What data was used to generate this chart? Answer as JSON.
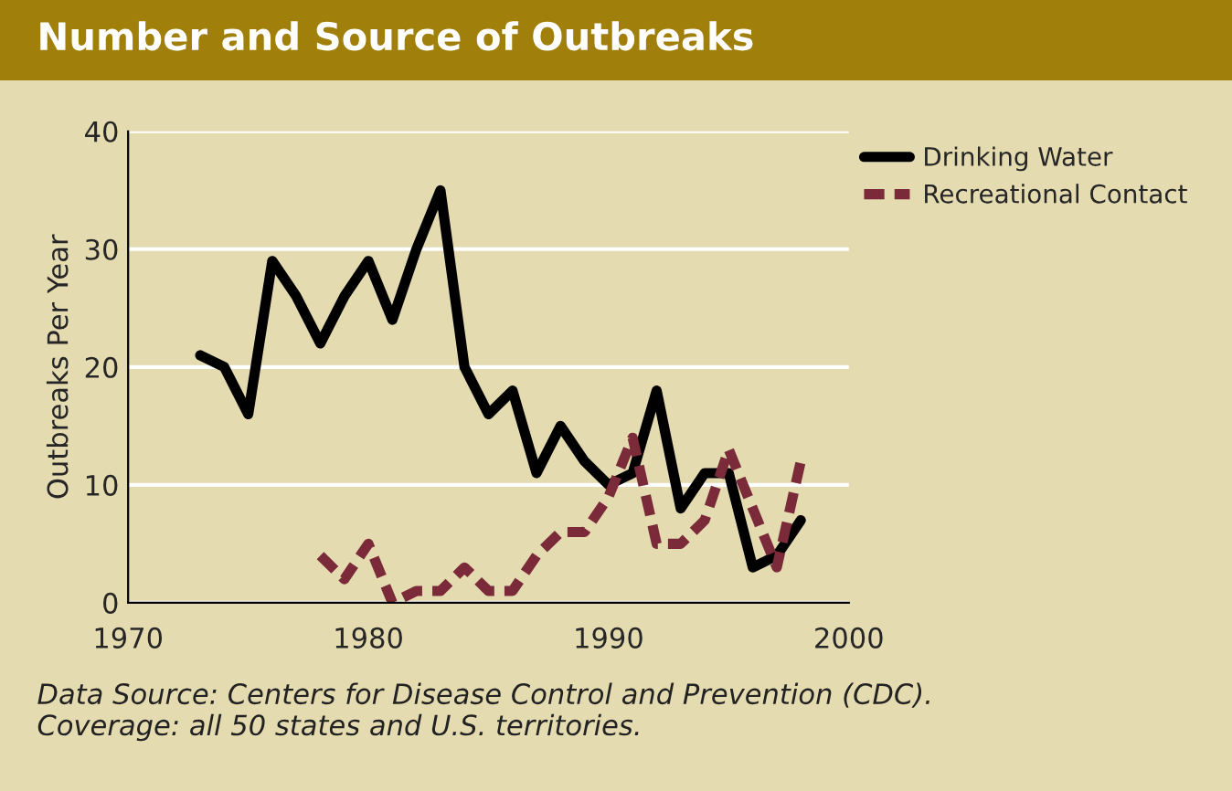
{
  "chart_data": {
    "type": "line",
    "title": "Number and Source of Outbreaks",
    "ylabel": "Outbreaks Per Year",
    "xlim": [
      1970,
      2000
    ],
    "xticks": [
      1970,
      1980,
      1990,
      2000
    ],
    "ylim": [
      0,
      40
    ],
    "yticks": [
      0,
      10,
      20,
      30,
      40
    ],
    "grid": "y",
    "legend": "top right",
    "marker": "none",
    "series": [
      {
        "name": "Drinking Water",
        "color": "#000000",
        "line_style": "solid",
        "x": [
          1973,
          1974,
          1975,
          1976,
          1977,
          1978,
          1979,
          1980,
          1981,
          1982,
          1983,
          1984,
          1985,
          1986,
          1987,
          1988,
          1989,
          1990,
          1991,
          1992,
          1993,
          1994,
          1995,
          1996,
          1997,
          1998
        ],
        "values": [
          21,
          20,
          16,
          29,
          26,
          22,
          26,
          29,
          24,
          30,
          35,
          20,
          16,
          18,
          11,
          15,
          12,
          10,
          11,
          18,
          8,
          11,
          11,
          3,
          4,
          7
        ]
      },
      {
        "name": "Recreational Contact",
        "color": "#7b2a3a",
        "line_style": "dashed",
        "x": [
          1978,
          1979,
          1980,
          1981,
          1982,
          1983,
          1984,
          1985,
          1986,
          1987,
          1988,
          1989,
          1990,
          1991,
          1992,
          1993,
          1994,
          1995,
          1996,
          1997,
          1998
        ],
        "values": [
          4,
          2,
          5,
          0,
          1,
          1,
          3,
          1,
          1,
          4,
          6,
          6,
          9,
          14,
          5,
          5,
          7,
          13,
          8,
          3,
          12
        ]
      }
    ],
    "annotations": [
      "Data Source: Centers for Disease Control and Prevention (CDC).\nCoverage: all 50 states and U.S. territories."
    ]
  }
}
